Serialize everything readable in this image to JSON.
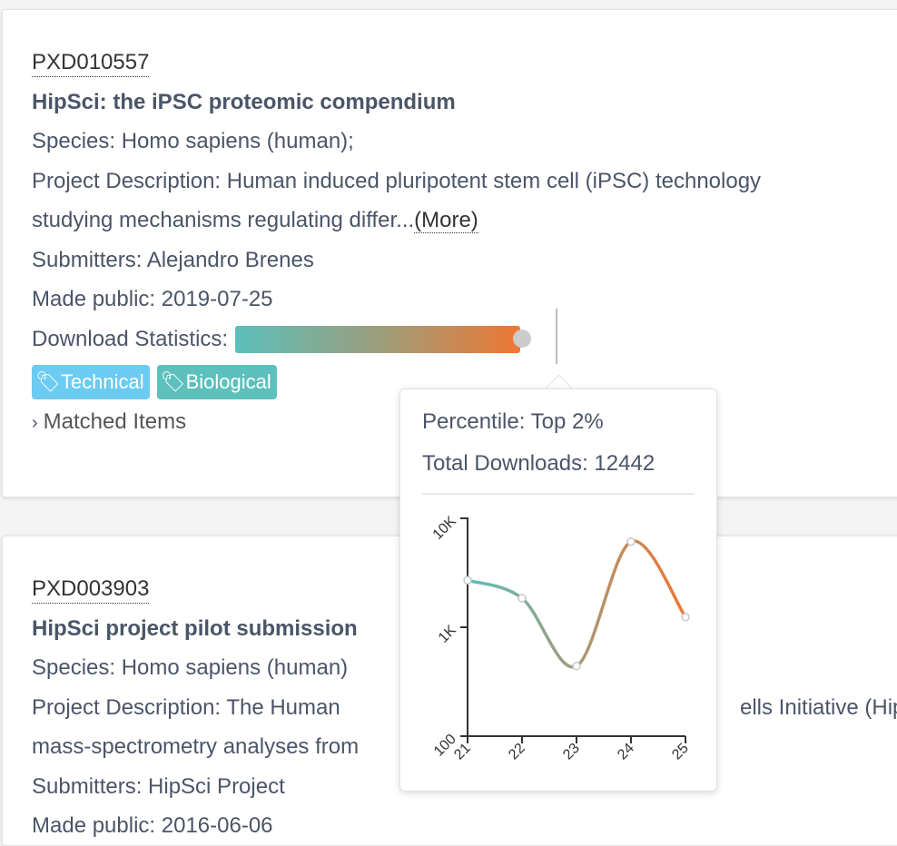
{
  "projects": [
    {
      "accession": "PXD010557",
      "title": "HipSci: the iPSC proteomic compendium",
      "species": "Species: Homo sapiens (human);",
      "description_line1": "Project Description: Human induced pluripotent stem cell (iPSC) technology",
      "description_line2": "studying mechanisms regulating differ...",
      "more_label": "(More)",
      "submitters": "Submitters: Alejandro Brenes",
      "made_public": "Made public: 2019-07-25",
      "download_label": "Download Statistics:",
      "download_percentile": 98,
      "tags": [
        {
          "label": "Technical",
          "color": "#6ccbf0"
        },
        {
          "label": "Biological",
          "color": "#5dc0bd"
        }
      ],
      "matched_label": "Matched Items"
    },
    {
      "accession": "PXD003903",
      "title": "HipSci project pilot submission",
      "species": "Species: Homo sapiens (human)",
      "description_line1": "Project Description: The Human",
      "description_line1b": "ells Initiative (Hip",
      "description_line2": "mass-spectrometry analyses from",
      "submitters": "Submitters: HipSci Project",
      "made_public": "Made public: 2016-06-06"
    }
  ],
  "tooltip": {
    "percentile": "Percentile: Top 2%",
    "total": "Total Downloads: 12442"
  },
  "chart_data": {
    "type": "line",
    "x": [
      21,
      22,
      23,
      24,
      25
    ],
    "y": [
      2700,
      1850,
      440,
      6100,
      1240
    ],
    "xticks": [
      "21",
      "22",
      "23",
      "24",
      "25"
    ],
    "yticks": [
      "100",
      "1K",
      "10K"
    ],
    "yscale": "log",
    "ylim": [
      100,
      10000
    ],
    "xlim": [
      21,
      25
    ],
    "gradient": [
      "#5bbfbc",
      "#ee7733"
    ],
    "grid": false
  }
}
